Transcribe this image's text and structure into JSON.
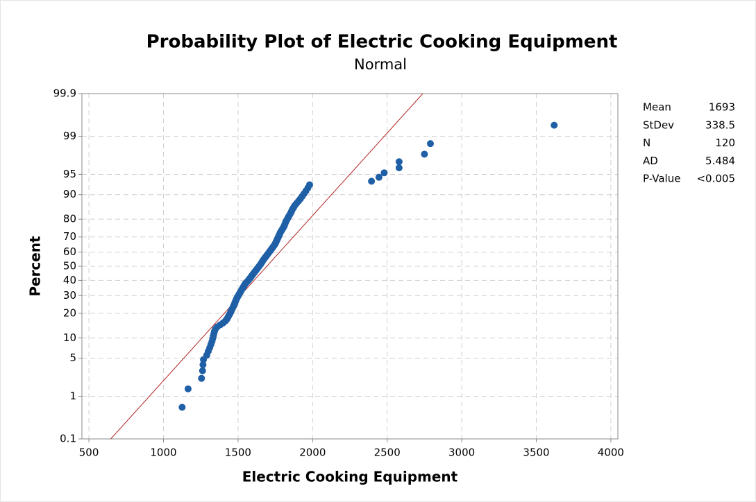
{
  "chart_data": {
    "type": "probability",
    "title": "Probability Plot of Electric Cooking Equipment",
    "subtitle": "Normal",
    "x_label": "Electric Cooking Equipment",
    "y_label": "Percent",
    "xlim": [
      453,
      4047
    ],
    "xticks": [
      500,
      1000,
      1500,
      2000,
      2500,
      3000,
      3500,
      4000
    ],
    "ylim": [
      0.1,
      99.9
    ],
    "yticks": [
      0.1,
      1,
      5,
      10,
      20,
      30,
      40,
      50,
      60,
      70,
      80,
      90,
      95,
      99,
      99.9
    ],
    "yscale": "normal-probability",
    "grid": true,
    "point_color": "#1f5fa6",
    "line_color": "#b22222",
    "stats": [
      {
        "label": "Mean",
        "value": 1693
      },
      {
        "label": "StDev",
        "value": 338.5
      },
      {
        "label": "N",
        "value": 120
      },
      {
        "label": "AD",
        "value": 5.484
      },
      {
        "label": "P-Value",
        "value": "<0.005"
      }
    ],
    "x": [
      1125,
      1165,
      1255,
      1262,
      1265,
      1268,
      1290,
      1300,
      1310,
      1318,
      1325,
      1330,
      1334,
      1338,
      1342,
      1348,
      1360,
      1380,
      1400,
      1415,
      1425,
      1432,
      1438,
      1445,
      1450,
      1455,
      1460,
      1465,
      1470,
      1475,
      1478,
      1482,
      1486,
      1490,
      1494,
      1500,
      1505,
      1510,
      1515,
      1520,
      1525,
      1530,
      1535,
      1540,
      1545,
      1550,
      1558,
      1566,
      1572,
      1578,
      1585,
      1590,
      1596,
      1602,
      1608,
      1614,
      1620,
      1626,
      1632,
      1638,
      1644,
      1650,
      1655,
      1660,
      1665,
      1670,
      1676,
      1682,
      1688,
      1694,
      1700,
      1706,
      1712,
      1718,
      1724,
      1730,
      1736,
      1742,
      1748,
      1752,
      1756,
      1760,
      1764,
      1768,
      1772,
      1776,
      1780,
      1784,
      1790,
      1796,
      1802,
      1808,
      1812,
      1816,
      1820,
      1826,
      1832,
      1838,
      1845,
      1852,
      1858,
      1864,
      1872,
      1880,
      1892,
      1905,
      1918,
      1930,
      1942,
      1955,
      1968,
      1980,
      2395,
      2445,
      2480,
      2580,
      2580,
      2750,
      2790,
      3620
    ],
    "values": [
      0.58,
      1.41,
      2.24,
      3.07,
      3.9,
      4.73,
      5.56,
      6.4,
      7.23,
      8.06,
      8.89,
      9.72,
      10.55,
      11.38,
      12.21,
      13.04,
      13.87,
      14.7,
      15.53,
      16.36,
      17.19,
      18.02,
      18.85,
      19.68,
      20.51,
      21.35,
      22.18,
      23.01,
      23.84,
      24.67,
      25.5,
      26.33,
      27.16,
      27.99,
      28.82,
      29.65,
      30.48,
      31.31,
      32.14,
      32.97,
      33.8,
      34.63,
      35.47,
      36.3,
      37.13,
      37.96,
      38.79,
      39.62,
      40.45,
      41.28,
      42.11,
      42.94,
      43.77,
      44.6,
      45.43,
      46.26,
      47.09,
      47.92,
      48.75,
      49.58,
      50.42,
      51.25,
      52.08,
      52.91,
      53.74,
      54.57,
      55.4,
      56.23,
      57.06,
      57.89,
      58.72,
      59.55,
      60.38,
      61.21,
      62.04,
      62.87,
      63.7,
      64.53,
      65.37,
      66.2,
      67.03,
      67.86,
      68.69,
      69.52,
      70.35,
      71.18,
      72.01,
      72.84,
      73.67,
      74.5,
      75.33,
      76.16,
      76.99,
      77.82,
      78.65,
      79.49,
      80.32,
      81.15,
      81.98,
      82.81,
      83.64,
      84.47,
      85.3,
      86.13,
      86.96,
      87.79,
      88.62,
      89.45,
      90.28,
      91.11,
      91.94,
      92.77,
      93.6,
      94.44,
      95.27,
      96.1,
      96.93,
      97.76,
      98.59,
      99.42
    ]
  }
}
